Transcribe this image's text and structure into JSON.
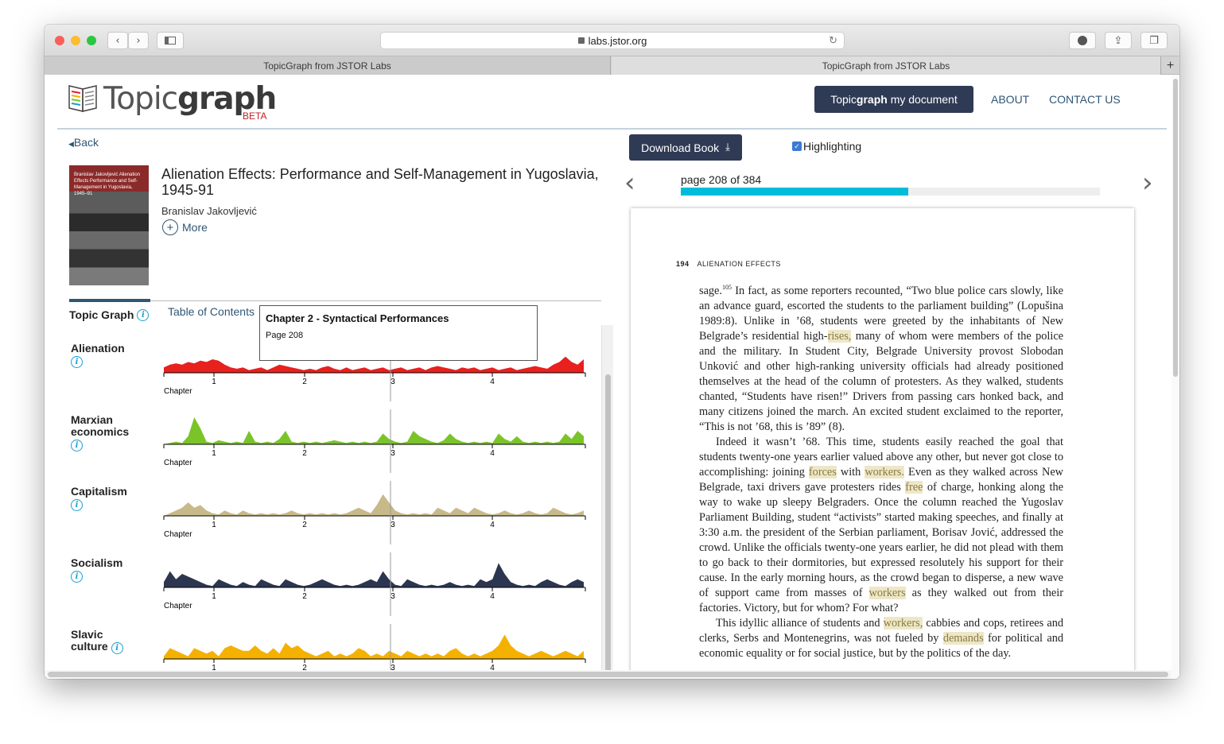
{
  "browser": {
    "url": "labs.jstor.org",
    "tabs": [
      {
        "label": "TopicGraph from JSTOR Labs"
      },
      {
        "label": "TopicGraph from JSTOR Labs"
      }
    ],
    "new_tab_label": "+"
  },
  "header": {
    "logo_light": "Topic",
    "logo_bold": "graph",
    "beta": "BETA",
    "cta_bold": "graph",
    "cta_pre": "Topic",
    "cta_post": " my document",
    "nav": [
      {
        "label": "ABOUT"
      },
      {
        "label": "CONTACT US"
      }
    ]
  },
  "left": {
    "back_label": "Back",
    "cover_text": "Branislav Jakovljević Alienation Effects Performance and Self-Management in Yugoslavia, 1945–91",
    "book_title": "Alienation Effects: Performance and Self-Management in Yugoslavia, 1945-91",
    "author": "Branislav Jakovljević",
    "more_label": "More",
    "tabs": [
      {
        "label": "Topic Graph"
      },
      {
        "label": "Table of Contents"
      }
    ],
    "tooltip": {
      "title": "Chapter 2 - Syntactical Performances",
      "subtitle": "Page 208"
    }
  },
  "chart_data": {
    "type": "area",
    "x_axis_label": "Chapter",
    "x_ticks": [
      "1",
      "2",
      "3",
      "4"
    ],
    "cursor_page": 208,
    "series": [
      {
        "name": "Alienation",
        "color": "#e8201e",
        "values": [
          0.2,
          0.3,
          0.35,
          0.3,
          0.4,
          0.35,
          0.45,
          0.4,
          0.5,
          0.45,
          0.3,
          0.2,
          0.15,
          0.2,
          0.1,
          0.15,
          0.2,
          0.1,
          0.2,
          0.3,
          0.25,
          0.2,
          0.15,
          0.1,
          0.15,
          0.1,
          0.2,
          0.25,
          0.15,
          0.1,
          0.2,
          0.1,
          0.15,
          0.2,
          0.1,
          0.15,
          0.2,
          0.1,
          0.15,
          0.2,
          0.1,
          0.15,
          0.2,
          0.1,
          0.2,
          0.25,
          0.2,
          0.15,
          0.1,
          0.2,
          0.15,
          0.2,
          0.1,
          0.15,
          0.2,
          0.1,
          0.15,
          0.2,
          0.1,
          0.15,
          0.2,
          0.25,
          0.2,
          0.15,
          0.3,
          0.4,
          0.6,
          0.4,
          0.3,
          0.5
        ]
      },
      {
        "name": "Marxian economics",
        "color": "#7ac42a",
        "values": [
          0,
          0.05,
          0.1,
          0.05,
          0.3,
          1,
          0.6,
          0.1,
          0.05,
          0.15,
          0.1,
          0.05,
          0.1,
          0.05,
          0.5,
          0.1,
          0.05,
          0.1,
          0.05,
          0.2,
          0.5,
          0.1,
          0.05,
          0.1,
          0.05,
          0.1,
          0.05,
          0.1,
          0.15,
          0.1,
          0.05,
          0.1,
          0.05,
          0.1,
          0.05,
          0.1,
          0.4,
          0.2,
          0.1,
          0.05,
          0.1,
          0.5,
          0.3,
          0.2,
          0.1,
          0.05,
          0.15,
          0.4,
          0.2,
          0.1,
          0.05,
          0.1,
          0.05,
          0.1,
          0.05,
          0.4,
          0.2,
          0.1,
          0.3,
          0.1,
          0.05,
          0.1,
          0.05,
          0.1,
          0.05,
          0.1,
          0.4,
          0.2,
          0.5,
          0.3
        ]
      },
      {
        "name": "Capitalism",
        "color": "#c8b98a",
        "values": [
          0,
          0.1,
          0.2,
          0.3,
          0.5,
          0.3,
          0.4,
          0.2,
          0.1,
          0.05,
          0.2,
          0.1,
          0.05,
          0.2,
          0.1,
          0.05,
          0.1,
          0.05,
          0.1,
          0.05,
          0.1,
          0.2,
          0.1,
          0.05,
          0.1,
          0.05,
          0.1,
          0.05,
          0.1,
          0.05,
          0.1,
          0.2,
          0.3,
          0.2,
          0.1,
          0.4,
          0.8,
          0.5,
          0.2,
          0.1,
          0.05,
          0.1,
          0.05,
          0.1,
          0.05,
          0.3,
          0.2,
          0.1,
          0.3,
          0.2,
          0.1,
          0.3,
          0.2,
          0.1,
          0.05,
          0.1,
          0.2,
          0.1,
          0.05,
          0.1,
          0.2,
          0.1,
          0.05,
          0.1,
          0.3,
          0.2,
          0.1,
          0.05,
          0.1,
          0.2
        ]
      },
      {
        "name": "Socialism",
        "color": "#2c3650",
        "values": [
          0.2,
          0.6,
          0.3,
          0.5,
          0.4,
          0.3,
          0.2,
          0.1,
          0.05,
          0.3,
          0.2,
          0.1,
          0.05,
          0.2,
          0.1,
          0.05,
          0.3,
          0.2,
          0.1,
          0.05,
          0.3,
          0.2,
          0.1,
          0.05,
          0.1,
          0.2,
          0.3,
          0.2,
          0.1,
          0.05,
          0.1,
          0.05,
          0.1,
          0.2,
          0.3,
          0.2,
          0.6,
          0.3,
          0.1,
          0.05,
          0.3,
          0.2,
          0.1,
          0.05,
          0.1,
          0.05,
          0.1,
          0.2,
          0.1,
          0.05,
          0.1,
          0.05,
          0.3,
          0.2,
          0.3,
          0.9,
          0.5,
          0.2,
          0.1,
          0.05,
          0.1,
          0.05,
          0.2,
          0.3,
          0.2,
          0.1,
          0.05,
          0.2,
          0.3,
          0.2
        ]
      },
      {
        "name": "Slavic culture",
        "color": "#f5b100",
        "values": [
          0.1,
          0.4,
          0.3,
          0.2,
          0.1,
          0.4,
          0.3,
          0.2,
          0.3,
          0.1,
          0.4,
          0.5,
          0.4,
          0.3,
          0.3,
          0.5,
          0.3,
          0.2,
          0.4,
          0.2,
          0.6,
          0.4,
          0.5,
          0.3,
          0.2,
          0.1,
          0.2,
          0.3,
          0.1,
          0.2,
          0.1,
          0.2,
          0.4,
          0.3,
          0.1,
          0.2,
          0.1,
          0.3,
          0.2,
          0.1,
          0.3,
          0.2,
          0.1,
          0.2,
          0.1,
          0.2,
          0.1,
          0.3,
          0.4,
          0.2,
          0.1,
          0.2,
          0.1,
          0.2,
          0.3,
          0.5,
          0.9,
          0.5,
          0.3,
          0.2,
          0.1,
          0.2,
          0.3,
          0.2,
          0.1,
          0.2,
          0.3,
          0.2,
          0.1,
          0.3
        ]
      }
    ]
  },
  "reader": {
    "download_label": "Download Book",
    "highlight_label": "Highlighting",
    "page_label": "page 208 of 384",
    "progress": 0.542,
    "prev_icon": "‹",
    "next_icon": "›",
    "running_head_num": "194",
    "running_head_title": "ALIENATION EFFECTS"
  }
}
